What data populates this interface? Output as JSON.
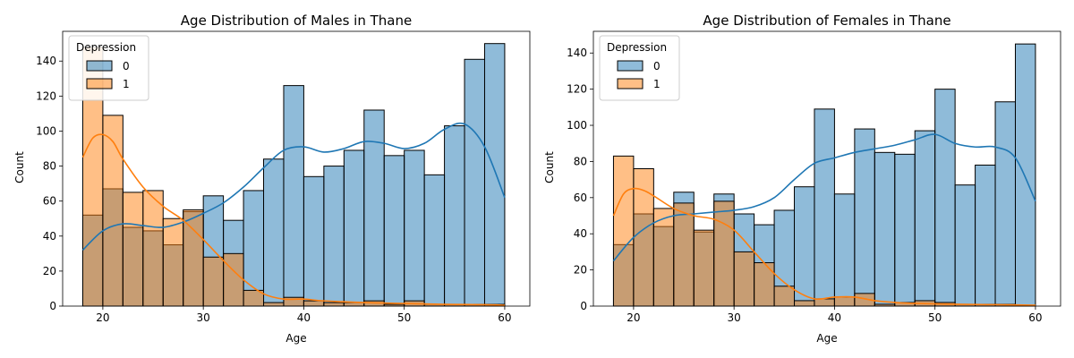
{
  "chart_data": [
    {
      "type": "histogram",
      "title": "Age Distribution of Males in Thane",
      "xlabel": "Age",
      "ylabel": "Count",
      "xlim": [
        16,
        62.5
      ],
      "ylim": [
        0,
        157
      ],
      "xticks": [
        20,
        30,
        40,
        50,
        60
      ],
      "yticks": [
        0,
        20,
        40,
        60,
        80,
        100,
        120,
        140
      ],
      "legend": {
        "title": "Depression",
        "position": "upper left",
        "labels": [
          "0",
          "1"
        ]
      },
      "bin_edges": [
        18,
        20,
        22,
        24,
        26,
        28,
        30,
        32,
        34,
        36,
        38,
        40,
        42,
        44,
        46,
        48,
        50,
        52,
        54,
        56,
        58,
        60
      ],
      "series": [
        {
          "name": "0",
          "color": "#1f77b4",
          "values": [
            52,
            67,
            45,
            43,
            35,
            54,
            63,
            49,
            66,
            84,
            126,
            74,
            80,
            89,
            112,
            86,
            89,
            75,
            103,
            141,
            150
          ],
          "kde": [
            [
              18,
              32
            ],
            [
              20,
              43
            ],
            [
              22,
              47
            ],
            [
              24,
              46
            ],
            [
              26,
              45
            ],
            [
              28,
              48
            ],
            [
              30,
              53
            ],
            [
              32,
              59
            ],
            [
              34,
              68
            ],
            [
              36,
              79
            ],
            [
              38,
              89
            ],
            [
              40,
              91
            ],
            [
              42,
              88
            ],
            [
              44,
              90
            ],
            [
              46,
              94
            ],
            [
              48,
              93
            ],
            [
              50,
              90
            ],
            [
              52,
              93
            ],
            [
              54,
              101
            ],
            [
              56,
              104
            ],
            [
              58,
              91
            ],
            [
              60,
              62
            ]
          ]
        },
        {
          "name": "1",
          "color": "#ff7f0e",
          "values": [
            148,
            109,
            65,
            66,
            50,
            55,
            28,
            30,
            9,
            2,
            5,
            3,
            2,
            2,
            3,
            1,
            3,
            1,
            1,
            1,
            1
          ],
          "kde": [
            [
              18,
              85
            ],
            [
              19,
              96
            ],
            [
              20,
              98
            ],
            [
              21,
              94
            ],
            [
              22,
              84
            ],
            [
              24,
              68
            ],
            [
              26,
              57
            ],
            [
              28,
              49
            ],
            [
              30,
              38
            ],
            [
              32,
              26
            ],
            [
              34,
              15
            ],
            [
              36,
              7
            ],
            [
              38,
              4
            ],
            [
              40,
              4
            ],
            [
              42,
              3
            ],
            [
              46,
              2
            ],
            [
              50,
              1.5
            ],
            [
              54,
              1
            ],
            [
              58,
              0.8
            ],
            [
              60,
              0.5
            ]
          ]
        }
      ]
    },
    {
      "type": "histogram",
      "title": "Age Distribution of Females in Thane",
      "xlabel": "Age",
      "ylabel": "Count",
      "xlim": [
        16,
        62.5
      ],
      "ylim": [
        0,
        152
      ],
      "xticks": [
        20,
        30,
        40,
        50,
        60
      ],
      "yticks": [
        0,
        20,
        40,
        60,
        80,
        100,
        120,
        140
      ],
      "legend": {
        "title": "Depression",
        "position": "upper left",
        "labels": [
          "0",
          "1"
        ]
      },
      "bin_edges": [
        18,
        20,
        22,
        24,
        26,
        28,
        30,
        32,
        34,
        36,
        38,
        40,
        42,
        44,
        46,
        48,
        50,
        52,
        54,
        56,
        58,
        60
      ],
      "series": [
        {
          "name": "0",
          "color": "#1f77b4",
          "values": [
            34,
            51,
            44,
            63,
            41,
            62,
            51,
            45,
            53,
            66,
            109,
            62,
            98,
            85,
            84,
            97,
            120,
            67,
            78,
            113,
            145
          ],
          "kde": [
            [
              18,
              25
            ],
            [
              20,
              38
            ],
            [
              22,
              46
            ],
            [
              24,
              50
            ],
            [
              26,
              51
            ],
            [
              28,
              52
            ],
            [
              30,
              53
            ],
            [
              32,
              55
            ],
            [
              34,
              60
            ],
            [
              36,
              70
            ],
            [
              38,
              79
            ],
            [
              40,
              82
            ],
            [
              42,
              85
            ],
            [
              44,
              87
            ],
            [
              46,
              89
            ],
            [
              48,
              92
            ],
            [
              50,
              95
            ],
            [
              52,
              90
            ],
            [
              54,
              88
            ],
            [
              56,
              88
            ],
            [
              58,
              82
            ],
            [
              60,
              58
            ]
          ]
        },
        {
          "name": "1",
          "color": "#ff7f0e",
          "values": [
            83,
            76,
            54,
            57,
            42,
            58,
            30,
            24,
            11,
            3,
            4,
            5,
            7,
            1,
            2,
            3,
            2,
            1,
            1,
            1,
            0
          ],
          "kde": [
            [
              18,
              50
            ],
            [
              19,
              62
            ],
            [
              20,
              65
            ],
            [
              21,
              64
            ],
            [
              22,
              61
            ],
            [
              24,
              54
            ],
            [
              26,
              50
            ],
            [
              28,
              48
            ],
            [
              30,
              42
            ],
            [
              32,
              30
            ],
            [
              34,
              18
            ],
            [
              36,
              9
            ],
            [
              38,
              4
            ],
            [
              40,
              5
            ],
            [
              42,
              5
            ],
            [
              44,
              3
            ],
            [
              46,
              2
            ],
            [
              48,
              1.5
            ],
            [
              52,
              1
            ],
            [
              56,
              0.8
            ],
            [
              60,
              0.5
            ]
          ]
        }
      ]
    }
  ]
}
